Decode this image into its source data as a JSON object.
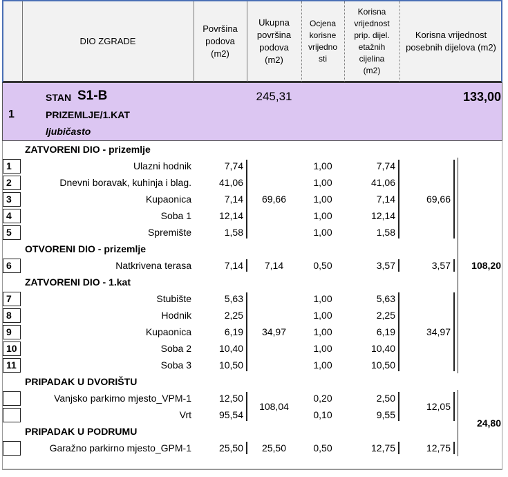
{
  "header": {
    "columns": [
      [
        "DIO ZGRADE"
      ],
      [
        "Površina",
        "podova",
        "(m2)"
      ],
      [
        "Ukupna",
        "površina",
        "podova",
        "(m2)"
      ],
      [
        "Ocjena",
        "korisne",
        "vrijedno",
        "sti"
      ],
      [
        "Korisna",
        "vrijednost",
        "prip. dijel.",
        "etažnih",
        "cijelina",
        "(m2)"
      ],
      [
        "Korisna vrijednost",
        "posebnih dijelova (m2)"
      ]
    ]
  },
  "unit": {
    "number": "1",
    "label": "STAN",
    "code": "S1-B",
    "floors": "PRIZEMLJE/1.KAT",
    "color": "ljubičasto",
    "total_area": "245,31",
    "total_value": "133,00"
  },
  "sections": [
    {
      "title": "ZATVORENI DIO - prizemlje",
      "rows": [
        {
          "no": "1",
          "name": "Ulazni hodnik",
          "area": "7,74",
          "coef": "1,00",
          "value": "7,74"
        },
        {
          "no": "2",
          "name": "Dnevni boravak, kuhinja i blag.",
          "area": "41,06",
          "coef": "1,00",
          "value": "41,06"
        },
        {
          "no": "3",
          "name": "Kupaonica",
          "area": "7,14",
          "coef": "1,00",
          "value": "7,14"
        },
        {
          "no": "4",
          "name": "Soba 1",
          "area": "12,14",
          "coef": "1,00",
          "value": "12,14"
        },
        {
          "no": "5",
          "name": "Spremište",
          "area": "1,58",
          "coef": "1,00",
          "value": "1,58"
        }
      ]
    },
    {
      "title": "OTVORENI DIO - prizemlje",
      "rows": [
        {
          "no": "6",
          "name": "Natkrivena terasa",
          "area": "7,14",
          "coef": "0,50",
          "value": "3,57"
        }
      ]
    },
    {
      "title": "ZATVORENI DIO - 1.kat",
      "rows": [
        {
          "no": "7",
          "name": "Stubište",
          "area": "5,63",
          "coef": "1,00",
          "value": "5,63"
        },
        {
          "no": "8",
          "name": "Hodnik",
          "area": "2,25",
          "coef": "1,00",
          "value": "2,25"
        },
        {
          "no": "9",
          "name": "Kupaonica",
          "area": "6,19",
          "coef": "1,00",
          "value": "6,19"
        },
        {
          "no": "10",
          "name": "Soba 2",
          "area": "10,40",
          "coef": "1,00",
          "value": "10,40"
        },
        {
          "no": "11",
          "name": "Soba 3",
          "area": "10,50",
          "coef": "1,00",
          "value": "10,50"
        }
      ]
    },
    {
      "title": "PRIPADAK U DVORIŠTU",
      "rows": [
        {
          "name": "Vanjsko parkirno mjesto_VPM-1",
          "area": "12,50",
          "coef": "0,20",
          "value": "2,50"
        },
        {
          "name": "Vrt",
          "area": "95,54",
          "coef": "0,10",
          "value": "9,55"
        }
      ]
    },
    {
      "title": "PRIPADAK U PODRUMU",
      "rows": [
        {
          "name": "Garažno parkirno mjesto_GPM-1",
          "area": "25,50",
          "coef": "0,50",
          "value": "12,75"
        }
      ]
    }
  ],
  "groups": [
    {
      "total_area": "69,66",
      "value": "69,66"
    },
    {
      "total_area": "7,14",
      "value": "3,57"
    },
    {
      "total_area": "34,97",
      "value": "34,97"
    },
    {
      "total_area": "108,04",
      "value": "12,05"
    },
    {
      "total_area": "25,50",
      "value": "12,75"
    }
  ],
  "parts": [
    {
      "value": "108,20"
    },
    {
      "value": "24,80"
    }
  ]
}
